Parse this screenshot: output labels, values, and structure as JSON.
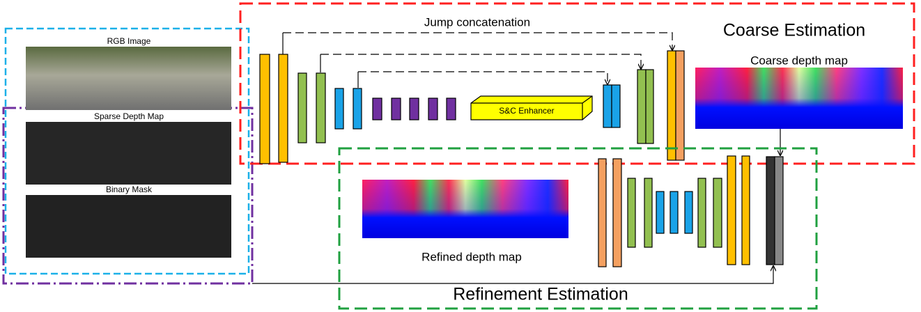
{
  "inputs": {
    "rgb_label": "RGB Image",
    "sparse_label": "Sparse Depth Map",
    "mask_label": "Binary Mask"
  },
  "coarse": {
    "title": "Coarse Estimation",
    "jump_label": "Jump concatenation",
    "enhancer_label": "S&C Enhancer",
    "output_label": "Coarse depth map"
  },
  "refine": {
    "title": "Refinement Estimation",
    "output_label": "Refined depth map"
  }
}
